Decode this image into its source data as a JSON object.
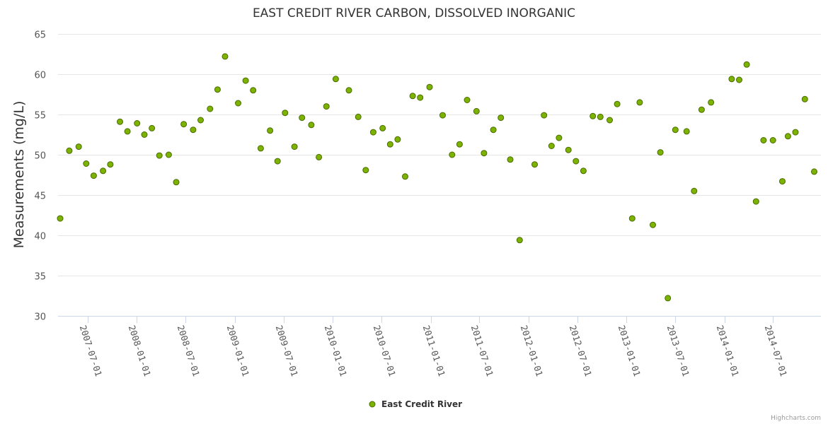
{
  "chart_data": {
    "type": "scatter",
    "title": "EAST CREDIT RIVER CARBON, DISSOLVED INORGANIC",
    "xlabel": "",
    "ylabel": "Measurements (mg/L)",
    "ylim": [
      30,
      65
    ],
    "yticks": [
      30,
      35,
      40,
      45,
      50,
      55,
      60,
      65
    ],
    "xlim": [
      "2007-03-13",
      "2014-12-27"
    ],
    "xticks": [
      "2007-07-01",
      "2008-01-01",
      "2008-07-01",
      "2009-01-01",
      "2009-07-01",
      "2010-01-01",
      "2010-07-01",
      "2011-01-01",
      "2011-07-01",
      "2012-01-01",
      "2012-07-01",
      "2013-01-01",
      "2013-07-01",
      "2014-01-01",
      "2014-07-01"
    ],
    "legend": "bottom-center",
    "grid": true,
    "series": [
      {
        "name": "East Credit River",
        "color": "#7cb200",
        "points": [
          [
            "2007-03-21",
            42.1
          ],
          [
            "2007-04-24",
            50.5
          ],
          [
            "2007-05-29",
            51.0
          ],
          [
            "2007-06-26",
            48.9
          ],
          [
            "2007-07-24",
            47.4
          ],
          [
            "2007-08-28",
            48.0
          ],
          [
            "2007-09-24",
            48.8
          ],
          [
            "2007-10-30",
            54.1
          ],
          [
            "2007-11-27",
            52.9
          ],
          [
            "2008-01-02",
            53.9
          ],
          [
            "2008-01-29",
            52.5
          ],
          [
            "2008-02-26",
            53.3
          ],
          [
            "2008-03-25",
            49.9
          ],
          [
            "2008-04-29",
            50.0
          ],
          [
            "2008-05-27",
            46.6
          ],
          [
            "2008-06-24",
            53.8
          ],
          [
            "2008-07-29",
            53.1
          ],
          [
            "2008-08-26",
            54.3
          ],
          [
            "2008-09-30",
            55.7
          ],
          [
            "2008-10-28",
            58.1
          ],
          [
            "2008-11-25",
            62.2
          ],
          [
            "2009-01-13",
            56.4
          ],
          [
            "2009-02-10",
            59.2
          ],
          [
            "2009-03-10",
            58.0
          ],
          [
            "2009-04-07",
            50.8
          ],
          [
            "2009-05-12",
            53.0
          ],
          [
            "2009-06-09",
            49.2
          ],
          [
            "2009-07-07",
            55.2
          ],
          [
            "2009-08-11",
            51.0
          ],
          [
            "2009-09-08",
            54.6
          ],
          [
            "2009-10-13",
            53.7
          ],
          [
            "2009-11-10",
            49.7
          ],
          [
            "2009-12-08",
            56.0
          ],
          [
            "2010-01-12",
            59.4
          ],
          [
            "2010-03-02",
            58.0
          ],
          [
            "2010-04-06",
            54.7
          ],
          [
            "2010-05-04",
            48.1
          ],
          [
            "2010-06-01",
            52.8
          ],
          [
            "2010-07-06",
            53.3
          ],
          [
            "2010-08-03",
            51.3
          ],
          [
            "2010-08-31",
            51.9
          ],
          [
            "2010-09-28",
            47.3
          ],
          [
            "2010-10-26",
            57.3
          ],
          [
            "2010-11-23",
            57.1
          ],
          [
            "2010-12-28",
            58.4
          ],
          [
            "2011-02-15",
            54.9
          ],
          [
            "2011-03-22",
            50.0
          ],
          [
            "2011-04-19",
            51.3
          ],
          [
            "2011-05-17",
            56.8
          ],
          [
            "2011-06-21",
            55.4
          ],
          [
            "2011-07-19",
            50.2
          ],
          [
            "2011-08-23",
            53.1
          ],
          [
            "2011-09-20",
            54.6
          ],
          [
            "2011-10-25",
            49.4
          ],
          [
            "2011-11-29",
            39.4
          ],
          [
            "2012-01-24",
            48.8
          ],
          [
            "2012-02-28",
            54.9
          ],
          [
            "2012-03-27",
            51.1
          ],
          [
            "2012-04-24",
            52.1
          ],
          [
            "2012-05-29",
            50.6
          ],
          [
            "2012-06-26",
            49.2
          ],
          [
            "2012-07-24",
            48.0
          ],
          [
            "2012-08-28",
            54.8
          ],
          [
            "2012-09-25",
            54.7
          ],
          [
            "2012-10-30",
            54.3
          ],
          [
            "2012-11-27",
            56.3
          ],
          [
            "2013-01-22",
            42.1
          ],
          [
            "2013-02-19",
            56.5
          ],
          [
            "2013-04-09",
            41.3
          ],
          [
            "2013-05-07",
            50.3
          ],
          [
            "2013-06-04",
            32.2
          ],
          [
            "2013-07-02",
            53.1
          ],
          [
            "2013-08-13",
            52.9
          ],
          [
            "2013-09-10",
            45.5
          ],
          [
            "2013-10-08",
            55.6
          ],
          [
            "2013-11-12",
            56.5
          ],
          [
            "2014-01-28",
            59.4
          ],
          [
            "2014-02-25",
            59.3
          ],
          [
            "2014-03-25",
            61.2
          ],
          [
            "2014-04-29",
            44.2
          ],
          [
            "2014-05-27",
            51.8
          ],
          [
            "2014-07-01",
            51.8
          ],
          [
            "2014-08-05",
            46.7
          ],
          [
            "2014-08-26",
            52.3
          ],
          [
            "2014-09-23",
            52.8
          ],
          [
            "2014-10-28",
            56.9
          ],
          [
            "2014-12-02",
            47.9
          ]
        ]
      }
    ]
  },
  "credits": "Highcharts.com"
}
